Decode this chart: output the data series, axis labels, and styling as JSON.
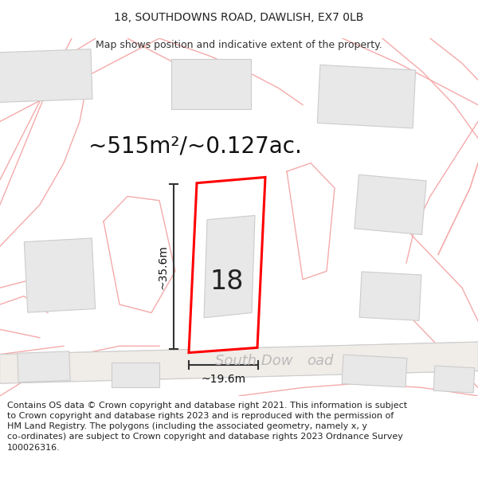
{
  "title_line1": "18, SOUTHDOWNS ROAD, DAWLISH, EX7 0LB",
  "title_line2": "Map shows position and indicative extent of the property.",
  "area_label": "~515m²/~0.127ac.",
  "number_label": "18",
  "width_label": "~19.6m",
  "height_label": "~35.6m",
  "road_label": "South Dow     oad",
  "footer_line1": "Contains OS data © Crown copyright and database right 2021. This information is subject",
  "footer_line2": "to Crown copyright and database rights 2023 and is reproduced with the permission of",
  "footer_line3": "HM Land Registry. The polygons (including the associated geometry, namely x, y",
  "footer_line4": "co-ordinates) are subject to Crown copyright and database rights 2023 Ordnance Survey",
  "footer_line5": "100026316.",
  "bg_color": "#ffffff",
  "map_bg": "#ffffff",
  "plot_fill": "#ffffff",
  "plot_border": "#ff0000",
  "building_fill": "#e8e8e8",
  "building_edge": "#cccccc",
  "road_band_fill": "#f0ece8",
  "road_band_edge": "#dddddd",
  "dim_line_color": "#333333",
  "road_text_color": "#bbbbbb",
  "pink_line_color": "#f5aaaa",
  "gray_line_color": "#cccccc",
  "title_fontsize": 10,
  "subtitle_fontsize": 9,
  "area_fontsize": 20,
  "number_fontsize": 24,
  "dim_fontsize": 10,
  "road_fontsize": 13,
  "footer_fontsize": 8
}
